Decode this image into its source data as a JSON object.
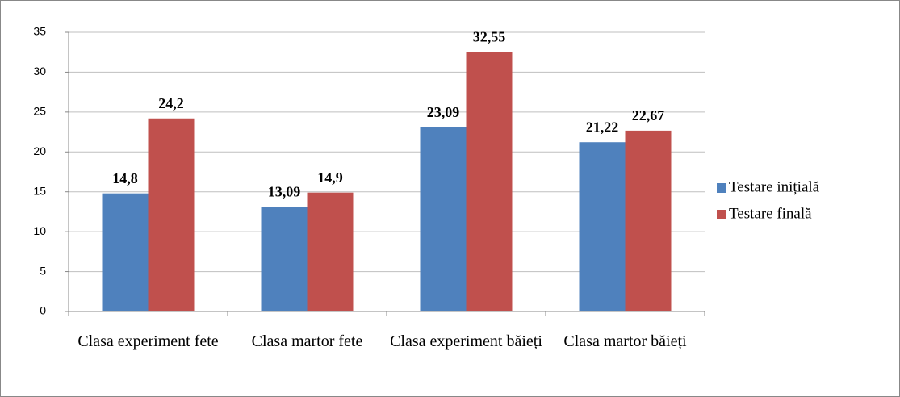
{
  "chart_data": {
    "type": "bar",
    "categories": [
      "Clasa experiment fete",
      "Clasa martor fete",
      "Clasa experiment băieți",
      "Clasa martor băieți"
    ],
    "series": [
      {
        "name": "Testare inițială",
        "color": "#4f81bd",
        "values": [
          14.8,
          13.09,
          23.09,
          21.22
        ],
        "value_labels": [
          "14,8",
          "13,09",
          "23,09",
          "21,22"
        ]
      },
      {
        "name": "Testare finală",
        "color": "#c0504d",
        "values": [
          24.2,
          14.9,
          32.55,
          22.67
        ],
        "value_labels": [
          "24,2",
          "14,9",
          "32,55",
          "22,67"
        ]
      }
    ],
    "ylim": [
      0,
      35
    ],
    "yticks": [
      0,
      5,
      10,
      15,
      20,
      25,
      30,
      35
    ],
    "grid": true,
    "legend": "right"
  }
}
